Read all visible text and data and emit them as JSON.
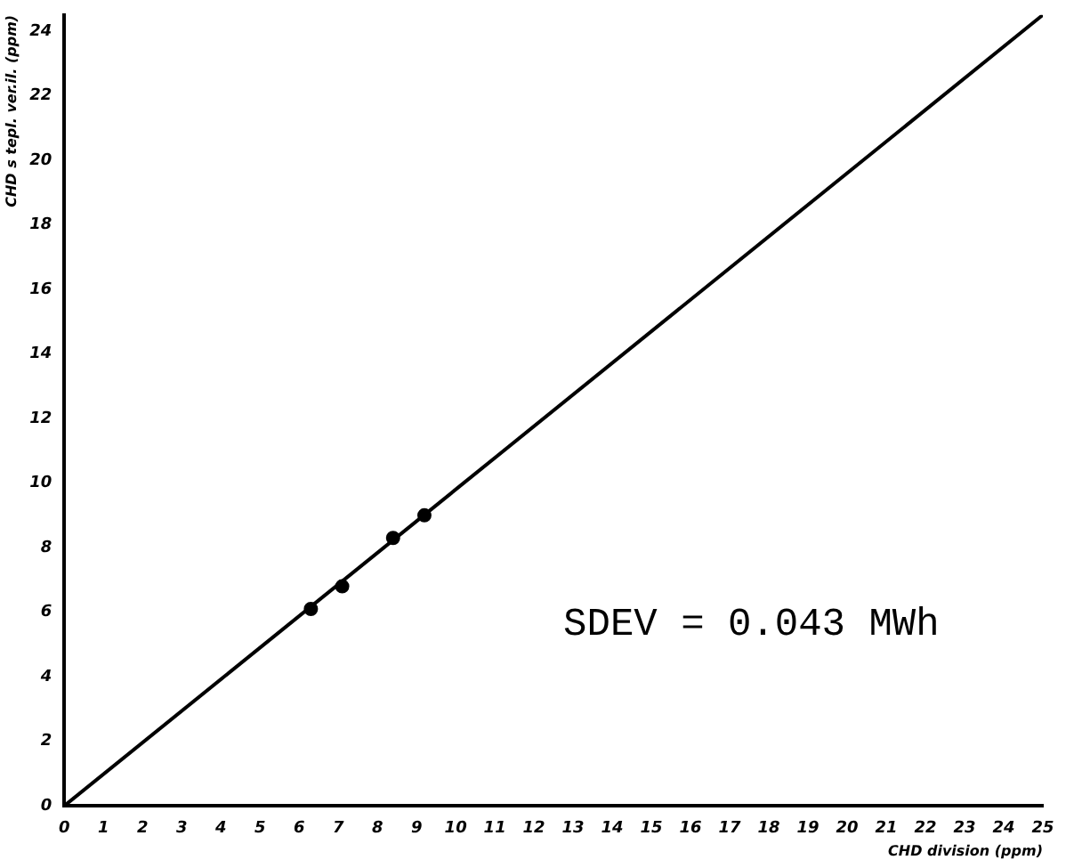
{
  "chart_data": {
    "type": "scatter",
    "xlabel": "CHD division (ppm)",
    "ylabel": "CHD s tepl. ver.il. (ppm)",
    "xlim": [
      0,
      25
    ],
    "ylim": [
      0,
      24.5
    ],
    "xticks": [
      0,
      1,
      2,
      3,
      4,
      5,
      6,
      7,
      8,
      9,
      10,
      11,
      12,
      13,
      14,
      15,
      16,
      17,
      18,
      19,
      20,
      21,
      22,
      23,
      24,
      25
    ],
    "yticks": [
      0,
      2,
      4,
      6,
      8,
      10,
      12,
      14,
      16,
      18,
      20,
      22,
      24
    ],
    "series": [
      {
        "type": "line",
        "marker": "none",
        "color": "#000000",
        "x": [
          0,
          25
        ],
        "values": [
          0,
          24.5
        ]
      },
      {
        "color": "#000000",
        "x": [
          6.3,
          7.1,
          8.4,
          9.2
        ],
        "values": [
          6.1,
          6.8,
          8.3,
          9.0
        ]
      }
    ],
    "marker": "circle",
    "grid": false,
    "legend": false,
    "annotations": [
      "SDEV = 0.043 MWh"
    ]
  }
}
